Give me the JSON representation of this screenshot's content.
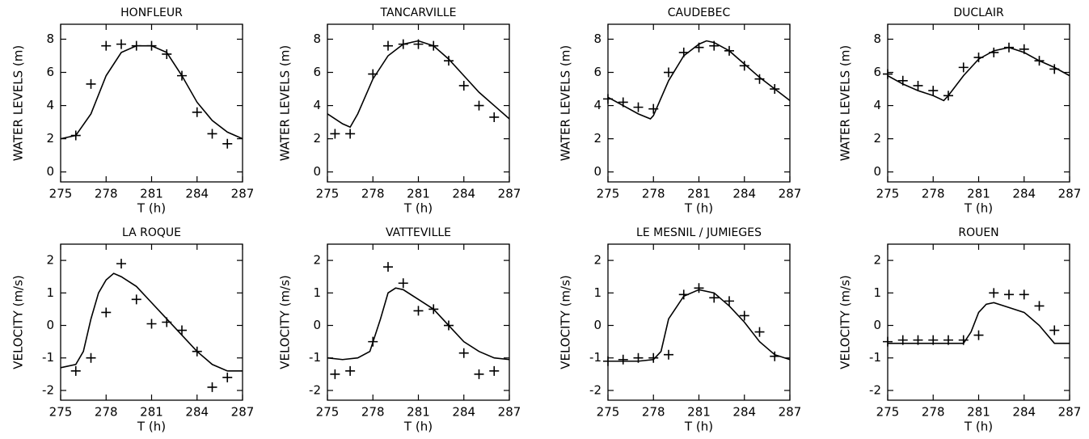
{
  "chart_data": [
    {
      "type": "line",
      "title": "HONFLEUR",
      "xlabel": "T (h)",
      "ylabel": "WATER LEVELS (m)",
      "xlim": [
        275,
        287
      ],
      "ylim": [
        -0.6,
        8.9
      ],
      "xticks": [
        275,
        278,
        281,
        284,
        287
      ],
      "yticks": [
        0,
        2,
        4,
        6,
        8
      ],
      "series": [
        {
          "mode": "line",
          "color": "#000000",
          "x": [
            275,
            276,
            277,
            278,
            279,
            280,
            281,
            282,
            283,
            284,
            285,
            286,
            287
          ],
          "values": [
            2.0,
            2.2,
            3.5,
            5.8,
            7.2,
            7.6,
            7.6,
            7.2,
            5.8,
            4.2,
            3.1,
            2.4,
            2.0
          ]
        },
        {
          "mode": "markers",
          "color": "#000000",
          "x": [
            276,
            277,
            278,
            279,
            280,
            281,
            282,
            283,
            284,
            285,
            286
          ],
          "values": [
            2.2,
            5.3,
            7.6,
            7.7,
            7.6,
            7.6,
            7.1,
            5.8,
            3.6,
            2.3,
            1.7
          ]
        }
      ]
    },
    {
      "type": "line",
      "title": "TANCARVILLE",
      "xlabel": "T (h)",
      "ylabel": "WATER LEVELS (m)",
      "xlim": [
        275,
        287
      ],
      "ylim": [
        -0.6,
        8.9
      ],
      "xticks": [
        275,
        278,
        281,
        284,
        287
      ],
      "yticks": [
        0,
        2,
        4,
        6,
        8
      ],
      "series": [
        {
          "mode": "line",
          "color": "#000000",
          "x": [
            275,
            276,
            276.5,
            277,
            278,
            279,
            280,
            281,
            282,
            283,
            284,
            285,
            286,
            287
          ],
          "values": [
            3.5,
            2.9,
            2.7,
            3.5,
            5.6,
            7.0,
            7.7,
            7.9,
            7.6,
            6.8,
            5.8,
            4.8,
            4.0,
            3.2
          ]
        },
        {
          "mode": "markers",
          "color": "#000000",
          "x": [
            275.5,
            276.5,
            278,
            279,
            280,
            281,
            282,
            283,
            284,
            285,
            286
          ],
          "values": [
            2.3,
            2.3,
            5.9,
            7.6,
            7.7,
            7.7,
            7.6,
            6.7,
            5.2,
            4.0,
            3.3
          ]
        }
      ]
    },
    {
      "type": "line",
      "title": "CAUDEBEC",
      "xlabel": "T (h)",
      "ylabel": "WATER LEVELS (m)",
      "xlim": [
        275,
        287
      ],
      "ylim": [
        -0.6,
        8.9
      ],
      "xticks": [
        275,
        278,
        281,
        284,
        287
      ],
      "yticks": [
        0,
        2,
        4,
        6,
        8
      ],
      "series": [
        {
          "mode": "line",
          "color": "#000000",
          "x": [
            275,
            276,
            277,
            277.8,
            278,
            279,
            280,
            281,
            281.5,
            282,
            283,
            284,
            285,
            286,
            287
          ],
          "values": [
            4.5,
            4.0,
            3.5,
            3.2,
            3.4,
            5.5,
            7.0,
            7.7,
            7.9,
            7.8,
            7.3,
            6.5,
            5.7,
            5.0,
            4.3
          ]
        },
        {
          "mode": "markers",
          "color": "#000000",
          "x": [
            275,
            276,
            277,
            278,
            279,
            280,
            281,
            282,
            283,
            284,
            285,
            286
          ],
          "values": [
            4.4,
            4.2,
            3.9,
            3.8,
            6.0,
            7.2,
            7.5,
            7.6,
            7.3,
            6.4,
            5.6,
            5.0
          ]
        }
      ]
    },
    {
      "type": "line",
      "title": "DUCLAIR",
      "xlabel": "T (h)",
      "ylabel": "WATER LEVELS (m)",
      "xlim": [
        275,
        287
      ],
      "ylim": [
        -0.6,
        8.9
      ],
      "xticks": [
        275,
        278,
        281,
        284,
        287
      ],
      "yticks": [
        0,
        2,
        4,
        6,
        8
      ],
      "series": [
        {
          "mode": "line",
          "color": "#000000",
          "x": [
            275,
            276,
            277,
            278,
            278.7,
            279,
            280,
            281,
            282,
            283,
            284,
            285,
            286,
            287
          ],
          "values": [
            5.8,
            5.3,
            4.9,
            4.6,
            4.3,
            4.6,
            5.8,
            6.8,
            7.3,
            7.5,
            7.2,
            6.7,
            6.3,
            5.8
          ]
        },
        {
          "mode": "markers",
          "color": "#000000",
          "x": [
            275,
            276,
            277,
            278,
            279,
            280,
            281,
            282,
            283,
            284,
            285,
            286
          ],
          "values": [
            5.9,
            5.5,
            5.2,
            4.9,
            4.6,
            6.3,
            6.9,
            7.2,
            7.5,
            7.4,
            6.7,
            6.2
          ]
        }
      ]
    },
    {
      "type": "line",
      "title": "LA ROQUE",
      "xlabel": "T (h)",
      "ylabel": "VELOCITY (m/s)",
      "xlim": [
        275,
        287
      ],
      "ylim": [
        -2.3,
        2.5
      ],
      "xticks": [
        275,
        278,
        281,
        284,
        287
      ],
      "yticks": [
        -2,
        -1,
        0,
        1,
        2
      ],
      "series": [
        {
          "mode": "line",
          "color": "#000000",
          "x": [
            275,
            276,
            276.5,
            277,
            277.5,
            278,
            278.5,
            279,
            280,
            281,
            282,
            283,
            284,
            285,
            286,
            287
          ],
          "values": [
            -1.3,
            -1.2,
            -0.8,
            0.2,
            1.0,
            1.4,
            1.6,
            1.5,
            1.2,
            0.7,
            0.2,
            -0.3,
            -0.8,
            -1.2,
            -1.4,
            -1.4
          ]
        },
        {
          "mode": "markers",
          "color": "#000000",
          "x": [
            276,
            277,
            278,
            279,
            280,
            281,
            282,
            283,
            284,
            285,
            286
          ],
          "values": [
            -1.4,
            -1.0,
            0.4,
            1.9,
            0.8,
            0.05,
            0.1,
            -0.15,
            -0.8,
            -1.9,
            -1.6
          ]
        }
      ]
    },
    {
      "type": "line",
      "title": "VATTEVILLE",
      "xlabel": "T (h)",
      "ylabel": "VELOCITY (m/s)",
      "xlim": [
        275,
        287
      ],
      "ylim": [
        -2.3,
        2.5
      ],
      "xticks": [
        275,
        278,
        281,
        284,
        287
      ],
      "yticks": [
        -2,
        -1,
        0,
        1,
        2
      ],
      "series": [
        {
          "mode": "line",
          "color": "#000000",
          "x": [
            275,
            276,
            277,
            277.8,
            278.5,
            279,
            279.5,
            280,
            281,
            282,
            283,
            284,
            285,
            286,
            287
          ],
          "values": [
            -1.0,
            -1.05,
            -1.0,
            -0.8,
            0.2,
            1.0,
            1.15,
            1.1,
            0.8,
            0.5,
            0.0,
            -0.5,
            -0.8,
            -1.0,
            -1.05
          ]
        },
        {
          "mode": "markers",
          "color": "#000000",
          "x": [
            275.5,
            276.5,
            278,
            279,
            280,
            281,
            282,
            283,
            284,
            285,
            286
          ],
          "values": [
            -1.5,
            -1.4,
            -0.5,
            1.8,
            1.3,
            0.45,
            0.5,
            0.0,
            -0.85,
            -1.5,
            -1.4
          ]
        }
      ]
    },
    {
      "type": "line",
      "title": "LE MESNIL / JUMIEGES",
      "xlabel": "T (h)",
      "ylabel": "VELOCITY (m/s)",
      "xlim": [
        275,
        287
      ],
      "ylim": [
        -2.3,
        2.5
      ],
      "xticks": [
        275,
        278,
        281,
        284,
        287
      ],
      "yticks": [
        -2,
        -1,
        0,
        1,
        2
      ],
      "series": [
        {
          "mode": "line",
          "color": "#000000",
          "x": [
            275,
            276,
            277,
            278,
            278.5,
            279,
            280,
            281,
            282,
            283,
            284,
            285,
            286,
            287
          ],
          "values": [
            -1.1,
            -1.1,
            -1.1,
            -1.05,
            -0.8,
            0.2,
            0.9,
            1.1,
            1.0,
            0.6,
            0.1,
            -0.5,
            -0.9,
            -1.05
          ]
        },
        {
          "mode": "markers",
          "color": "#000000",
          "x": [
            275,
            276,
            277,
            278,
            279,
            280,
            281,
            282,
            283,
            284,
            285,
            286
          ],
          "values": [
            -1.1,
            -1.05,
            -1.0,
            -1.0,
            -0.9,
            0.95,
            1.15,
            0.85,
            0.75,
            0.3,
            -0.2,
            -0.95
          ]
        }
      ]
    },
    {
      "type": "line",
      "title": "ROUEN",
      "xlabel": "T (h)",
      "ylabel": "VELOCITY (m/s)",
      "xlim": [
        275,
        287
      ],
      "ylim": [
        -2.3,
        2.5
      ],
      "xticks": [
        275,
        278,
        281,
        284,
        287
      ],
      "yticks": [
        -2,
        -1,
        0,
        1,
        2
      ],
      "series": [
        {
          "mode": "line",
          "color": "#000000",
          "x": [
            275,
            276,
            277,
            278,
            279,
            280,
            280.5,
            281,
            281.5,
            282,
            283,
            284,
            285,
            286,
            287
          ],
          "values": [
            -0.55,
            -0.55,
            -0.55,
            -0.55,
            -0.55,
            -0.55,
            -0.2,
            0.4,
            0.65,
            0.7,
            0.55,
            0.4,
            0.0,
            -0.55,
            -0.55
          ]
        },
        {
          "mode": "markers",
          "color": "#000000",
          "x": [
            275,
            276,
            277,
            278,
            279,
            280,
            281,
            282,
            283,
            284,
            285,
            286
          ],
          "values": [
            -0.5,
            -0.45,
            -0.45,
            -0.45,
            -0.45,
            -0.45,
            -0.3,
            1.0,
            0.95,
            0.95,
            0.6,
            -0.15
          ]
        }
      ]
    }
  ]
}
